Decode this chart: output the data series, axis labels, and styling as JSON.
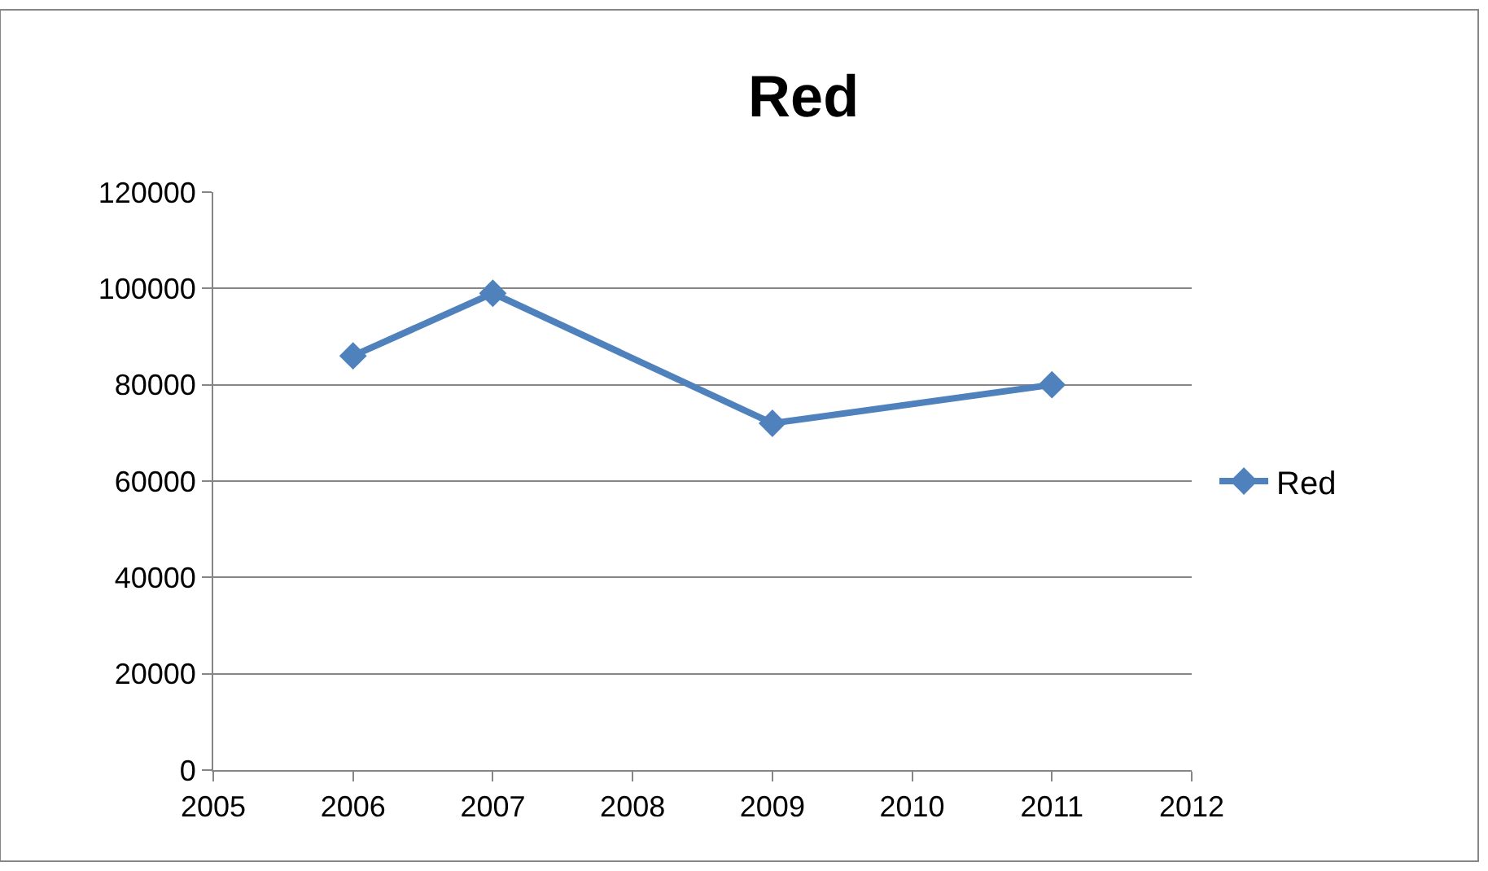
{
  "chart_data": {
    "type": "line",
    "title": "Red",
    "x": [
      2006,
      2007,
      2009,
      2011
    ],
    "series": [
      {
        "name": "Red",
        "color": "#4f81bd",
        "values": [
          86000,
          99000,
          72000,
          80000
        ]
      }
    ],
    "xlim": [
      2005,
      2012
    ],
    "xticks": [
      2005,
      2006,
      2007,
      2008,
      2009,
      2010,
      2011,
      2012
    ],
    "ylim": [
      0,
      120000
    ],
    "yticks": [
      0,
      20000,
      40000,
      60000,
      80000,
      100000,
      120000
    ],
    "grid": "y",
    "legend": "right",
    "marker": "diamond",
    "line_style": "solid"
  }
}
